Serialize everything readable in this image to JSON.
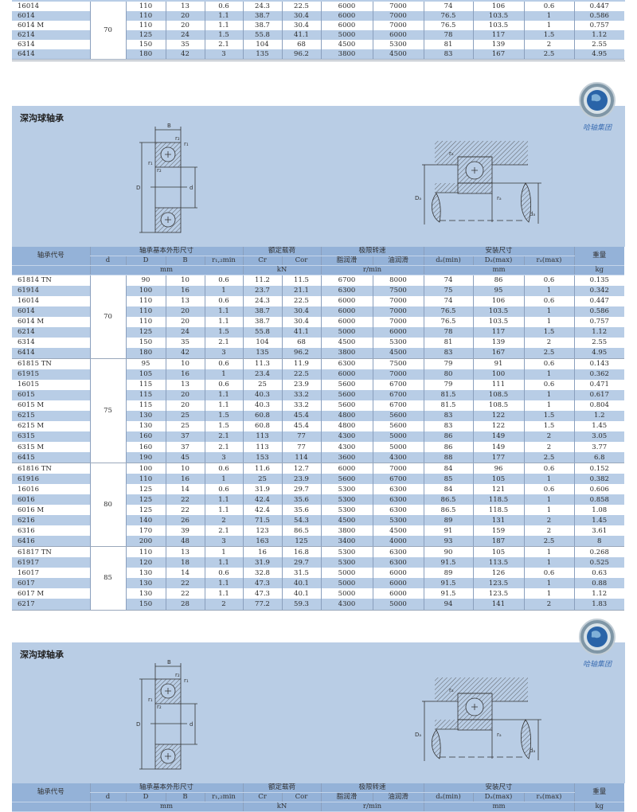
{
  "table_header": {
    "code": "轴承代号",
    "dims": "轴承基本外形尺寸",
    "load": "额定载荷",
    "speed": "极限转速",
    "mount": "安装尺寸",
    "weight": "重量",
    "cols": [
      "d",
      "D",
      "B",
      "r₁,₂min",
      "Cr",
      "Cor",
      "脂润滑",
      "油润滑",
      "dₐ(min)",
      "Dₐ(max)",
      "rₐ(max)"
    ],
    "units": {
      "dims": "mm",
      "load": "kN",
      "speed": "r/min",
      "mount": "mm",
      "weight": "kg"
    }
  },
  "top_fragment": {
    "groups": [
      {
        "d": "70",
        "rows": [
          [
            "16014",
            "110",
            "13",
            "0.6",
            "24.3",
            "22.5",
            "6000",
            "7000",
            "74",
            "106",
            "0.6",
            "0.447"
          ],
          [
            "6014",
            "110",
            "20",
            "1.1",
            "38.7",
            "30.4",
            "6000",
            "7000",
            "76.5",
            "103.5",
            "1",
            "0.586"
          ],
          [
            "6014 M",
            "110",
            "20",
            "1.1",
            "38.7",
            "30.4",
            "6000",
            "7000",
            "76.5",
            "103.5",
            "1",
            "0.757"
          ],
          [
            "6214",
            "125",
            "24",
            "1.5",
            "55.8",
            "41.1",
            "5000",
            "6000",
            "78",
            "117",
            "1.5",
            "1.12"
          ],
          [
            "6314",
            "150",
            "35",
            "2.1",
            "104",
            "68",
            "4500",
            "5300",
            "81",
            "139",
            "2",
            "2.55"
          ],
          [
            "6414",
            "180",
            "42",
            "3",
            "135",
            "96.2",
            "3800",
            "4500",
            "83",
            "167",
            "2.5",
            "4.95"
          ]
        ]
      }
    ]
  },
  "sections": [
    {
      "title": "深沟球轴承",
      "logo_text": "哈轴集团",
      "diagram": {
        "B": "B",
        "r1": "r₁",
        "r2": "r₂",
        "D": "D",
        "d": "d",
        "Da": "Dₐ",
        "da": "dₐ",
        "ra": "rₐ"
      },
      "table": {
        "groups": [
          {
            "d": "70",
            "rows": [
              [
                "61814 TN",
                "90",
                "10",
                "0.6",
                "11.2",
                "11.5",
                "6700",
                "8000",
                "74",
                "86",
                "0.6",
                "0.135"
              ],
              [
                "61914",
                "100",
                "16",
                "1",
                "23.7",
                "21.1",
                "6300",
                "7500",
                "75",
                "95",
                "1",
                "0.342"
              ],
              [
                "16014",
                "110",
                "13",
                "0.6",
                "24.3",
                "22.5",
                "6000",
                "7000",
                "74",
                "106",
                "0.6",
                "0.447"
              ],
              [
                "6014",
                "110",
                "20",
                "1.1",
                "38.7",
                "30.4",
                "6000",
                "7000",
                "76.5",
                "103.5",
                "1",
                "0.586"
              ],
              [
                "6014 M",
                "110",
                "20",
                "1.1",
                "38.7",
                "30.4",
                "6000",
                "7000",
                "76.5",
                "103.5",
                "1",
                "0.757"
              ],
              [
                "6214",
                "125",
                "24",
                "1.5",
                "55.8",
                "41.1",
                "5000",
                "6000",
                "78",
                "117",
                "1.5",
                "1.12"
              ],
              [
                "6314",
                "150",
                "35",
                "2.1",
                "104",
                "68",
                "4500",
                "5300",
                "81",
                "139",
                "2",
                "2.55"
              ],
              [
                "6414",
                "180",
                "42",
                "3",
                "135",
                "96.2",
                "3800",
                "4500",
                "83",
                "167",
                "2.5",
                "4.95"
              ]
            ]
          },
          {
            "d": "75",
            "rows": [
              [
                "61815 TN",
                "95",
                "10",
                "0.6",
                "11.3",
                "11.9",
                "6300",
                "7500",
                "79",
                "91",
                "0.6",
                "0.143"
              ],
              [
                "61915",
                "105",
                "16",
                "1",
                "23.4",
                "22.5",
                "6000",
                "7000",
                "80",
                "100",
                "1",
                "0.362"
              ],
              [
                "16015",
                "115",
                "13",
                "0.6",
                "25",
                "23.9",
                "5600",
                "6700",
                "79",
                "111",
                "0.6",
                "0.471"
              ],
              [
                "6015",
                "115",
                "20",
                "1.1",
                "40.3",
                "33.2",
                "5600",
                "6700",
                "81.5",
                "108.5",
                "1",
                "0.617"
              ],
              [
                "6015 M",
                "115",
                "20",
                "1.1",
                "40.3",
                "33.2",
                "5600",
                "6700",
                "81.5",
                "108.5",
                "1",
                "0.804"
              ],
              [
                "6215",
                "130",
                "25",
                "1.5",
                "60.8",
                "45.4",
                "4800",
                "5600",
                "83",
                "122",
                "1.5",
                "1.2"
              ],
              [
                "6215 M",
                "130",
                "25",
                "1.5",
                "60.8",
                "45.4",
                "4800",
                "5600",
                "83",
                "122",
                "1.5",
                "1.45"
              ],
              [
                "6315",
                "160",
                "37",
                "2.1",
                "113",
                "77",
                "4300",
                "5000",
                "86",
                "149",
                "2",
                "3.05"
              ],
              [
                "6315 M",
                "160",
                "37",
                "2.1",
                "113",
                "77",
                "4300",
                "5000",
                "86",
                "149",
                "2",
                "3.77"
              ],
              [
                "6415",
                "190",
                "45",
                "3",
                "153",
                "114",
                "3600",
                "4300",
                "88",
                "177",
                "2.5",
                "6.8"
              ]
            ]
          },
          {
            "d": "80",
            "rows": [
              [
                "61816 TN",
                "100",
                "10",
                "0.6",
                "11.6",
                "12.7",
                "6000",
                "7000",
                "84",
                "96",
                "0.6",
                "0.152"
              ],
              [
                "61916",
                "110",
                "16",
                "1",
                "25",
                "23.9",
                "5600",
                "6700",
                "85",
                "105",
                "1",
                "0.382"
              ],
              [
                "16016",
                "125",
                "14",
                "0.6",
                "31.9",
                "29.7",
                "5300",
                "6300",
                "84",
                "121",
                "0.6",
                "0.606"
              ],
              [
                "6016",
                "125",
                "22",
                "1.1",
                "42.4",
                "35.6",
                "5300",
                "6300",
                "86.5",
                "118.5",
                "1",
                "0.858"
              ],
              [
                "6016 M",
                "125",
                "22",
                "1.1",
                "42.4",
                "35.6",
                "5300",
                "6300",
                "86.5",
                "118.5",
                "1",
                "1.08"
              ],
              [
                "6216",
                "140",
                "26",
                "2",
                "71.5",
                "54.3",
                "4500",
                "5300",
                "89",
                "131",
                "2",
                "1.45"
              ],
              [
                "6316",
                "170",
                "39",
                "2.1",
                "123",
                "86.5",
                "3800",
                "4500",
                "91",
                "159",
                "2",
                "3.61"
              ],
              [
                "6416",
                "200",
                "48",
                "3",
                "163",
                "125",
                "3400",
                "4000",
                "93",
                "187",
                "2.5",
                "8"
              ]
            ]
          },
          {
            "d": "85",
            "rows": [
              [
                "61817 TN",
                "110",
                "13",
                "1",
                "16",
                "16.8",
                "5300",
                "6300",
                "90",
                "105",
                "1",
                "0.268"
              ],
              [
                "61917",
                "120",
                "18",
                "1.1",
                "31.9",
                "29.7",
                "5300",
                "6300",
                "91.5",
                "113.5",
                "1",
                "0.525"
              ],
              [
                "16017",
                "130",
                "14",
                "0.6",
                "32.8",
                "31.5",
                "5000",
                "6000",
                "89",
                "126",
                "0.6",
                "0.63"
              ],
              [
                "6017",
                "130",
                "22",
                "1.1",
                "47.3",
                "40.1",
                "5000",
                "6000",
                "91.5",
                "123.5",
                "1",
                "0.88"
              ],
              [
                "6017 M",
                "130",
                "22",
                "1.1",
                "47.3",
                "40.1",
                "5000",
                "6000",
                "91.5",
                "123.5",
                "1",
                "1.12"
              ],
              [
                "6217",
                "150",
                "28",
                "2",
                "77.2",
                "59.3",
                "4300",
                "5000",
                "94",
                "141",
                "2",
                "1.83"
              ]
            ]
          }
        ]
      }
    },
    {
      "title": "深沟球轴承",
      "logo_text": "哈轴集团",
      "diagram": {
        "B": "B",
        "r1": "r₁",
        "r2": "r₂",
        "D": "D",
        "d": "d",
        "Da": "Dₐ",
        "da": "dₐ",
        "ra": "rₐ"
      }
    }
  ],
  "colors": {
    "panel": "#b9cde5",
    "row_alt": "#b8cde6",
    "header": "#94b2d8",
    "logo_text": "#3d6fb3"
  }
}
